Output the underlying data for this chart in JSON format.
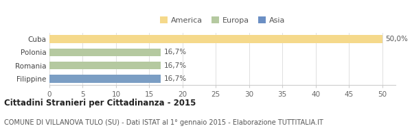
{
  "categories": [
    "Cuba",
    "Polonia",
    "Romania",
    "Filippine"
  ],
  "values": [
    50.0,
    16.7,
    16.7,
    16.7
  ],
  "bar_colors": [
    "#f5d98b",
    "#b5c9a0",
    "#b5c9a0",
    "#7b9ec4"
  ],
  "value_labels": [
    "50,0%",
    "16,7%",
    "16,7%",
    "16,7%"
  ],
  "legend": [
    {
      "label": "America",
      "color": "#f5d98b"
    },
    {
      "label": "Europa",
      "color": "#b5c9a0"
    },
    {
      "label": "Asia",
      "color": "#6b8fc4"
    }
  ],
  "xlim": [
    0,
    52
  ],
  "xticks": [
    0,
    5,
    10,
    15,
    20,
    25,
    30,
    35,
    40,
    45,
    50
  ],
  "title": "Cittadini Stranieri per Cittadinanza - 2015",
  "subtitle": "COMUNE DI VILLANOVA TULO (SU) - Dati ISTAT al 1° gennaio 2015 - Elaborazione TUTTITALIA.IT",
  "background_color": "#ffffff",
  "bar_height": 0.6,
  "title_fontsize": 8.5,
  "subtitle_fontsize": 7.0,
  "label_fontsize": 7.5,
  "tick_fontsize": 7.5,
  "legend_fontsize": 8.0
}
